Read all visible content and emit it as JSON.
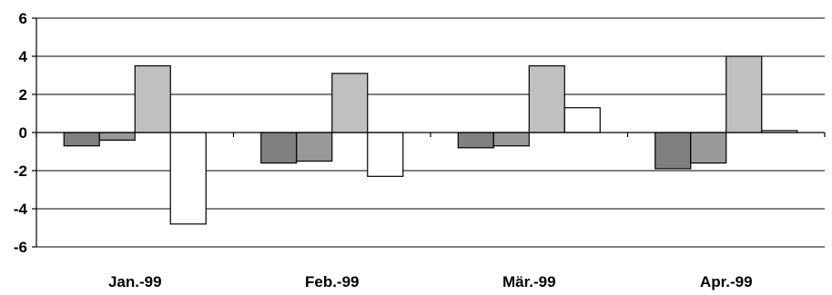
{
  "chart_data": {
    "type": "bar",
    "categories": [
      "Jan.-99",
      "Feb.-99",
      "Mär.-99",
      "Apr.-99"
    ],
    "series": [
      {
        "values": [
          -0.7,
          -1.6,
          -0.8,
          -1.9
        ],
        "color": "#808080"
      },
      {
        "values": [
          -0.4,
          -1.5,
          -0.7,
          -1.6
        ],
        "color": "#999999"
      },
      {
        "values": [
          3.5,
          3.1,
          3.5,
          4.0
        ],
        "color": "#c0c0c0"
      },
      {
        "values": [
          -4.8,
          -2.3,
          1.3,
          0.1
        ],
        "color": "#ffffff"
      }
    ],
    "ylim": [
      -6,
      6
    ],
    "yticks": [
      -6,
      -4,
      -2,
      0,
      2,
      4,
      6
    ],
    "grid": true,
    "legend": "none"
  }
}
